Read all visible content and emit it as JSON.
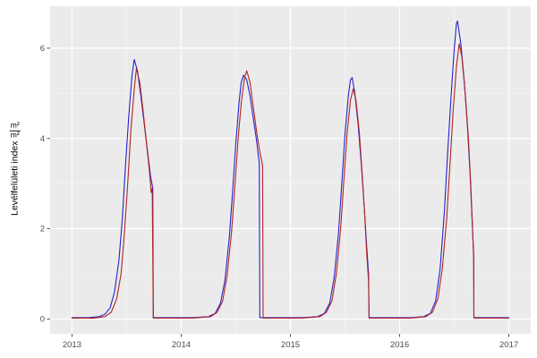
{
  "figure": {
    "background": "#FFFFFF"
  },
  "ylabel": {
    "text": "Levélfelületi index",
    "frac_num": "m²",
    "frac_den": "m²"
  },
  "chart_data": {
    "type": "line",
    "title": "",
    "xlabel": "",
    "ylabel": "Levélfelületi index (m²/m²)",
    "legend": "none",
    "grid": true,
    "panel_bg": "#EBEBEB",
    "grid_major_color": "#FFFFFF",
    "grid_minor_color": "#F5F5F5",
    "tick_color": "#333333",
    "tick_label_color": "#4D4D4D",
    "xlim": [
      2012.8,
      2017.2
    ],
    "ylim": [
      -0.33,
      6.93
    ],
    "xticks": {
      "values": [
        2013,
        2014,
        2015,
        2016,
        2017
      ],
      "labels": [
        "2013",
        "2014",
        "2015",
        "2016",
        "2017"
      ]
    },
    "yticks": {
      "values": [
        0,
        2,
        4,
        6
      ],
      "labels": [
        "0",
        "2",
        "4",
        "6"
      ]
    },
    "xminor": [
      2013.5,
      2014.5,
      2015.5,
      2016.5
    ],
    "yminor": [
      1,
      3,
      5
    ],
    "series": [
      {
        "name": "series-blue",
        "color": "#2222CC",
        "points": [
          [
            2013.0,
            0.03
          ],
          [
            2013.15,
            0.03
          ],
          [
            2013.25,
            0.05
          ],
          [
            2013.3,
            0.1
          ],
          [
            2013.35,
            0.25
          ],
          [
            2013.39,
            0.6
          ],
          [
            2013.43,
            1.3
          ],
          [
            2013.46,
            2.2
          ],
          [
            2013.49,
            3.4
          ],
          [
            2013.52,
            4.5
          ],
          [
            2013.55,
            5.4
          ],
          [
            2013.57,
            5.75
          ],
          [
            2013.6,
            5.5
          ],
          [
            2013.63,
            4.95
          ],
          [
            2013.66,
            4.35
          ],
          [
            2013.69,
            3.75
          ],
          [
            2013.72,
            3.15
          ],
          [
            2013.74,
            2.9
          ],
          [
            2013.745,
            0.03
          ],
          [
            2013.9,
            0.03
          ],
          [
            2014.1,
            0.03
          ],
          [
            2014.25,
            0.05
          ],
          [
            2014.31,
            0.12
          ],
          [
            2014.36,
            0.35
          ],
          [
            2014.4,
            0.85
          ],
          [
            2014.44,
            1.8
          ],
          [
            2014.47,
            2.8
          ],
          [
            2014.5,
            3.9
          ],
          [
            2014.53,
            4.8
          ],
          [
            2014.55,
            5.25
          ],
          [
            2014.57,
            5.4
          ],
          [
            2014.6,
            5.3
          ],
          [
            2014.63,
            4.95
          ],
          [
            2014.66,
            4.45
          ],
          [
            2014.69,
            3.95
          ],
          [
            2014.715,
            3.45
          ],
          [
            2014.72,
            0.03
          ],
          [
            2014.9,
            0.03
          ],
          [
            2015.1,
            0.03
          ],
          [
            2015.25,
            0.05
          ],
          [
            2015.31,
            0.12
          ],
          [
            2015.36,
            0.35
          ],
          [
            2015.4,
            0.9
          ],
          [
            2015.44,
            1.9
          ],
          [
            2015.47,
            3.0
          ],
          [
            2015.5,
            4.1
          ],
          [
            2015.53,
            4.95
          ],
          [
            2015.55,
            5.3
          ],
          [
            2015.565,
            5.35
          ],
          [
            2015.59,
            5.0
          ],
          [
            2015.62,
            4.3
          ],
          [
            2015.65,
            3.4
          ],
          [
            2015.675,
            2.5
          ],
          [
            2015.7,
            1.55
          ],
          [
            2015.715,
            1.0
          ],
          [
            2015.72,
            0.03
          ],
          [
            2015.9,
            0.03
          ],
          [
            2016.1,
            0.03
          ],
          [
            2016.22,
            0.05
          ],
          [
            2016.28,
            0.12
          ],
          [
            2016.33,
            0.4
          ],
          [
            2016.37,
            1.1
          ],
          [
            2016.41,
            2.4
          ],
          [
            2016.44,
            3.7
          ],
          [
            2016.47,
            4.9
          ],
          [
            2016.5,
            6.0
          ],
          [
            2016.52,
            6.55
          ],
          [
            2016.53,
            6.6
          ],
          [
            2016.56,
            6.1
          ],
          [
            2016.59,
            5.3
          ],
          [
            2016.62,
            4.3
          ],
          [
            2016.645,
            3.2
          ],
          [
            2016.665,
            2.1
          ],
          [
            2016.678,
            1.4
          ],
          [
            2016.68,
            0.03
          ],
          [
            2016.9,
            0.03
          ],
          [
            2017.0,
            0.03
          ]
        ]
      },
      {
        "name": "series-red",
        "color": "#B22222",
        "points": [
          [
            2013.0,
            0.02
          ],
          [
            2013.2,
            0.02
          ],
          [
            2013.3,
            0.05
          ],
          [
            2013.36,
            0.15
          ],
          [
            2013.41,
            0.45
          ],
          [
            2013.45,
            1.0
          ],
          [
            2013.48,
            1.9
          ],
          [
            2013.51,
            3.0
          ],
          [
            2013.54,
            4.2
          ],
          [
            2013.57,
            5.1
          ],
          [
            2013.59,
            5.55
          ],
          [
            2013.62,
            5.25
          ],
          [
            2013.65,
            4.65
          ],
          [
            2013.68,
            3.95
          ],
          [
            2013.71,
            3.25
          ],
          [
            2013.725,
            2.8
          ],
          [
            2013.735,
            2.9
          ],
          [
            2013.745,
            0.02
          ],
          [
            2013.9,
            0.02
          ],
          [
            2014.1,
            0.02
          ],
          [
            2014.27,
            0.05
          ],
          [
            2014.33,
            0.15
          ],
          [
            2014.38,
            0.4
          ],
          [
            2014.42,
            0.95
          ],
          [
            2014.46,
            1.9
          ],
          [
            2014.49,
            2.9
          ],
          [
            2014.52,
            3.95
          ],
          [
            2014.55,
            4.8
          ],
          [
            2014.58,
            5.35
          ],
          [
            2014.6,
            5.5
          ],
          [
            2014.63,
            5.25
          ],
          [
            2014.66,
            4.7
          ],
          [
            2014.69,
            4.15
          ],
          [
            2014.72,
            3.7
          ],
          [
            2014.745,
            3.4
          ],
          [
            2014.75,
            0.02
          ],
          [
            2014.95,
            0.02
          ],
          [
            2015.1,
            0.02
          ],
          [
            2015.27,
            0.05
          ],
          [
            2015.33,
            0.15
          ],
          [
            2015.38,
            0.4
          ],
          [
            2015.42,
            1.0
          ],
          [
            2015.46,
            2.0
          ],
          [
            2015.49,
            3.1
          ],
          [
            2015.52,
            4.15
          ],
          [
            2015.55,
            4.85
          ],
          [
            2015.575,
            5.1
          ],
          [
            2015.6,
            4.85
          ],
          [
            2015.63,
            4.15
          ],
          [
            2015.655,
            3.3
          ],
          [
            2015.68,
            2.3
          ],
          [
            2015.7,
            1.4
          ],
          [
            2015.715,
            0.85
          ],
          [
            2015.72,
            0.02
          ],
          [
            2015.9,
            0.02
          ],
          [
            2016.1,
            0.02
          ],
          [
            2016.24,
            0.05
          ],
          [
            2016.3,
            0.15
          ],
          [
            2016.35,
            0.45
          ],
          [
            2016.39,
            1.1
          ],
          [
            2016.43,
            2.2
          ],
          [
            2016.46,
            3.4
          ],
          [
            2016.49,
            4.6
          ],
          [
            2016.52,
            5.6
          ],
          [
            2016.545,
            6.1
          ],
          [
            2016.57,
            5.8
          ],
          [
            2016.6,
            5.0
          ],
          [
            2016.63,
            4.0
          ],
          [
            2016.65,
            3.0
          ],
          [
            2016.668,
            1.95
          ],
          [
            2016.678,
            1.3
          ],
          [
            2016.68,
            0.02
          ],
          [
            2016.9,
            0.02
          ],
          [
            2017.0,
            0.02
          ]
        ]
      }
    ]
  }
}
